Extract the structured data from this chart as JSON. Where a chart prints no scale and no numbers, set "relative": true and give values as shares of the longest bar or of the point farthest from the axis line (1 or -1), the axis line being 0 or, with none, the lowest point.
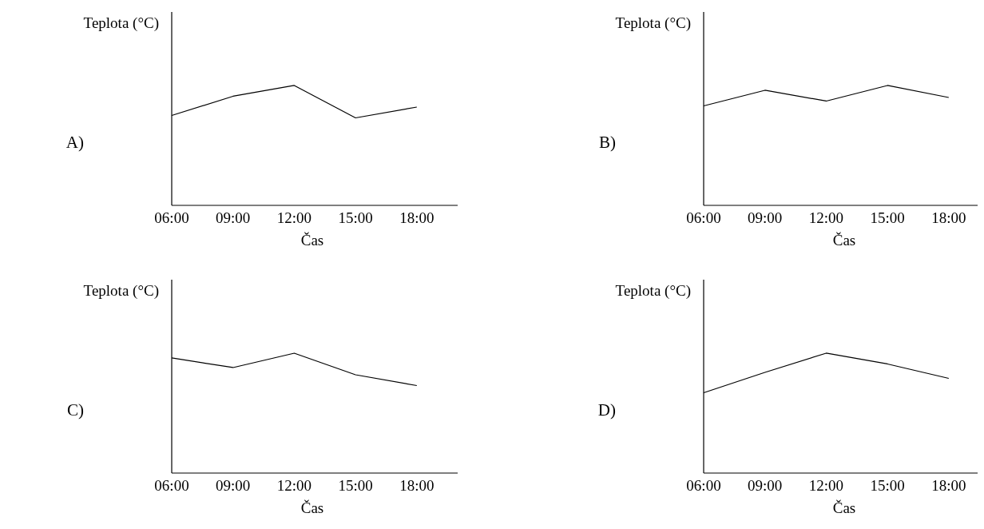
{
  "chart_data": [
    {
      "type": "line",
      "title": "A)",
      "ylabel": "Teplota (°C)",
      "xlabel": "Čas",
      "relative": true,
      "x": [
        6,
        9,
        12,
        15,
        18
      ],
      "xlim": [
        6,
        20
      ],
      "xticks": [
        {
          "value": 6,
          "label": "06:00"
        },
        {
          "value": 9,
          "label": "09:00"
        },
        {
          "value": 12,
          "label": "12:00"
        },
        {
          "value": 15,
          "label": "15:00"
        },
        {
          "value": 18,
          "label": "18:00"
        }
      ],
      "series": [
        {
          "color": "#000000",
          "values": [
            0.75,
            0.91,
            1,
            0.73,
            0.82
          ]
        }
      ]
    },
    {
      "type": "line",
      "title": "B)",
      "ylabel": "Teplota (°C)",
      "xlabel": "Čas",
      "relative": true,
      "x": [
        6,
        9,
        12,
        15,
        18
      ],
      "xlim": [
        6,
        20
      ],
      "xticks": [
        {
          "value": 6,
          "label": "06:00"
        },
        {
          "value": 9,
          "label": "09:00"
        },
        {
          "value": 12,
          "label": "12:00"
        },
        {
          "value": 15,
          "label": "15:00"
        },
        {
          "value": 18,
          "label": "18:00"
        }
      ],
      "series": [
        {
          "color": "#000000",
          "values": [
            0.83,
            0.96,
            0.87,
            1,
            0.9
          ]
        }
      ]
    },
    {
      "type": "line",
      "title": "C)",
      "ylabel": "Teplota (°C)",
      "xlabel": "Čas",
      "relative": true,
      "x": [
        6,
        9,
        12,
        15,
        18
      ],
      "xlim": [
        6,
        20
      ],
      "xticks": [
        {
          "value": 6,
          "label": "06:00"
        },
        {
          "value": 9,
          "label": "09:00"
        },
        {
          "value": 12,
          "label": "12:00"
        },
        {
          "value": 15,
          "label": "15:00"
        },
        {
          "value": 18,
          "label": "18:00"
        }
      ],
      "series": [
        {
          "color": "#000000",
          "values": [
            0.96,
            0.88,
            1,
            0.82,
            0.73
          ]
        }
      ]
    },
    {
      "type": "line",
      "title": "D)",
      "ylabel": "Teplota (°C)",
      "xlabel": "Čas",
      "relative": true,
      "x": [
        6,
        9,
        12,
        15,
        18
      ],
      "xlim": [
        6,
        20
      ],
      "xticks": [
        {
          "value": 6,
          "label": "06:00"
        },
        {
          "value": 9,
          "label": "09:00"
        },
        {
          "value": 12,
          "label": "12:00"
        },
        {
          "value": 15,
          "label": "15:00"
        },
        {
          "value": 18,
          "label": "18:00"
        }
      ],
      "series": [
        {
          "color": "#000000",
          "values": [
            0.67,
            0.84,
            1,
            0.91,
            0.79
          ]
        }
      ]
    }
  ]
}
